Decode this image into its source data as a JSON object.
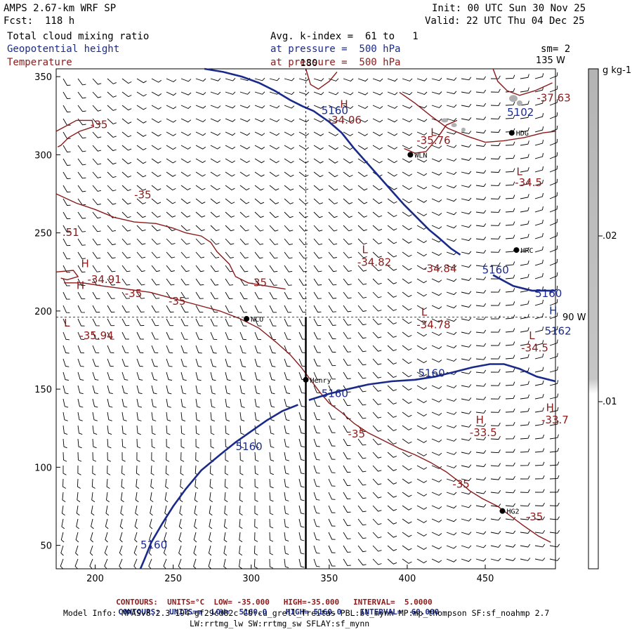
{
  "header": {
    "model": "AMPS 2.67-km WRF SP",
    "fcst": "Fcst:  118 h",
    "init": "Init: 00 UTC Sun 30 Nov 25",
    "valid": "Valid: 22 UTC Thu 04 Dec 25",
    "field1": "Total cloud mixing ratio",
    "field2": "Geopotential height",
    "field3": "Temperature",
    "avg": "Avg. k-index =  61 to   1",
    "pres1": "at pressure =  500 hPa",
    "pres2": "at pressure =  500 hPa",
    "sm": "sm= 2"
  },
  "colors": {
    "temperature": "#8b1a1a",
    "height": "#1a2a8a",
    "cloud": "#b0b0b0",
    "wind": "#000000"
  },
  "chart_data": {
    "type": "contour-map",
    "xlim": [
      175,
      495
    ],
    "ylim": [
      35,
      355
    ],
    "xticks": [
      200,
      250,
      300,
      350,
      400,
      450
    ],
    "yticks": [
      50,
      100,
      150,
      200,
      250,
      300,
      350
    ],
    "map_labels": {
      "lon180": "180",
      "lon135": "135 W",
      "lon90": "90 W"
    },
    "stations": [
      {
        "name": "NCO",
        "x": 297,
        "y": 195
      },
      {
        "name": "Henry",
        "x": 335,
        "y": 156
      },
      {
        "name": "WLN",
        "x": 402,
        "y": 300
      },
      {
        "name": "HRC",
        "x": 470,
        "y": 239
      },
      {
        "name": "HG2",
        "x": 461,
        "y": 72
      },
      {
        "name": "HDG",
        "x": 467,
        "y": 314
      }
    ],
    "temperature_labels": [
      {
        "text": "-35",
        "x": 197,
        "y": 317
      },
      {
        "text": "-35",
        "x": 225,
        "y": 272
      },
      {
        "text": ".51",
        "x": 179,
        "y": 248
      },
      {
        "text": "-35",
        "x": 219,
        "y": 209
      },
      {
        "text": "-35",
        "x": 247,
        "y": 204
      },
      {
        "text": "-35",
        "x": 299,
        "y": 216
      },
      {
        "text": "-35",
        "x": 362,
        "y": 119
      },
      {
        "text": "-35",
        "x": 429,
        "y": 87
      },
      {
        "text": "-35",
        "x": 476,
        "y": 66
      },
      {
        "text": "-34.06",
        "x": 349,
        "y": 320
      },
      {
        "text": "-35.76",
        "x": 406,
        "y": 307
      },
      {
        "text": "-37.63",
        "x": 483,
        "y": 334
      },
      {
        "text": "-34.5",
        "x": 469,
        "y": 280
      },
      {
        "text": "-34.82",
        "x": 368,
        "y": 229
      },
      {
        "text": "-34.84",
        "x": 410,
        "y": 225
      },
      {
        "text": "-34.91",
        "x": 195,
        "y": 218
      },
      {
        "text": "-35.94",
        "x": 190,
        "y": 182
      },
      {
        "text": "-34.78",
        "x": 406,
        "y": 189
      },
      {
        "text": "-34.5",
        "x": 473,
        "y": 174
      },
      {
        "text": "-33.5",
        "x": 440,
        "y": 120
      },
      {
        "text": "-33.7",
        "x": 486,
        "y": 128
      }
    ],
    "height_labels": [
      {
        "text": "5160",
        "x": 345,
        "y": 326
      },
      {
        "text": "5102",
        "x": 464,
        "y": 325
      },
      {
        "text": "5160",
        "x": 448,
        "y": 224
      },
      {
        "text": "5160",
        "x": 482,
        "y": 209
      },
      {
        "text": "5162",
        "x": 488,
        "y": 185
      },
      {
        "text": "5160",
        "x": 407,
        "y": 158
      },
      {
        "text": "5160",
        "x": 345,
        "y": 145
      },
      {
        "text": "5160",
        "x": 290,
        "y": 111
      },
      {
        "text": "5160",
        "x": 229,
        "y": 48
      }
    ],
    "extrema": [
      {
        "text": "H",
        "x": 191,
        "y": 228,
        "color": "red"
      },
      {
        "text": "L",
        "x": 180,
        "y": 190,
        "color": "red"
      },
      {
        "text": "H",
        "x": 188,
        "y": 214,
        "color": "red"
      },
      {
        "text": "H",
        "x": 357,
        "y": 330,
        "color": "red"
      },
      {
        "text": "L",
        "x": 415,
        "y": 312,
        "color": "red"
      },
      {
        "text": "L",
        "x": 470,
        "y": 287,
        "color": "red"
      },
      {
        "text": "L",
        "x": 371,
        "y": 237,
        "color": "red"
      },
      {
        "text": "L",
        "x": 409,
        "y": 197,
        "color": "red"
      },
      {
        "text": "L",
        "x": 478,
        "y": 182,
        "color": "red"
      },
      {
        "text": "H",
        "x": 444,
        "y": 128,
        "color": "red"
      },
      {
        "text": "H",
        "x": 489,
        "y": 136,
        "color": "red"
      },
      {
        "text": "H",
        "x": 491,
        "y": 198,
        "color": "blue"
      }
    ],
    "temperature_contours": [
      [
        [
          175,
          315
        ],
        [
          188,
          322
        ],
        [
          198,
          322
        ],
        [
          199,
          318
        ],
        [
          190,
          315
        ],
        [
          183,
          311
        ],
        [
          178,
          306
        ],
        [
          176,
          305
        ]
      ],
      [
        [
          175,
          275
        ],
        [
          188,
          269
        ],
        [
          200,
          265
        ],
        [
          212,
          260
        ],
        [
          225,
          257
        ],
        [
          239,
          256
        ],
        [
          250,
          253
        ],
        [
          258,
          250
        ],
        [
          268,
          248
        ],
        [
          274,
          244
        ],
        [
          278,
          238
        ],
        [
          286,
          230
        ],
        [
          290,
          222
        ],
        [
          298,
          218
        ],
        [
          310,
          216
        ],
        [
          322,
          214
        ]
      ],
      [
        [
          180,
          218
        ],
        [
          192,
          218
        ],
        [
          205,
          216
        ],
        [
          220,
          214
        ],
        [
          235,
          212
        ],
        [
          250,
          208
        ],
        [
          265,
          204
        ],
        [
          280,
          200
        ],
        [
          293,
          195
        ],
        [
          305,
          189
        ],
        [
          316,
          180
        ],
        [
          325,
          172
        ],
        [
          332,
          164
        ],
        [
          338,
          156
        ],
        [
          344,
          148
        ],
        [
          350,
          141
        ],
        [
          358,
          135
        ],
        [
          366,
          128
        ],
        [
          375,
          122
        ],
        [
          385,
          117
        ],
        [
          395,
          112
        ],
        [
          405,
          108
        ],
        [
          415,
          103
        ],
        [
          425,
          97
        ],
        [
          433,
          91
        ],
        [
          440,
          85
        ],
        [
          448,
          80
        ],
        [
          458,
          75
        ],
        [
          466,
          69
        ],
        [
          474,
          63
        ],
        [
          484,
          56
        ],
        [
          492,
          52
        ]
      ],
      [
        [
          175,
          225
        ],
        [
          186,
          226
        ],
        [
          189,
          222
        ],
        [
          182,
          220
        ],
        [
          178,
          221
        ]
      ],
      [
        [
          335,
          355
        ],
        [
          338,
          345
        ],
        [
          343,
          342
        ],
        [
          350,
          347
        ],
        [
          355,
          353
        ]
      ],
      [
        [
          395,
          340
        ],
        [
          405,
          333
        ],
        [
          415,
          325
        ],
        [
          426,
          317
        ],
        [
          438,
          312
        ],
        [
          450,
          308
        ],
        [
          462,
          309
        ],
        [
          475,
          311
        ],
        [
          487,
          314
        ],
        [
          495,
          315
        ]
      ],
      [
        [
          398,
          304
        ],
        [
          405,
          301
        ],
        [
          412,
          302
        ],
        [
          418,
          309
        ],
        [
          425,
          319
        ],
        [
          432,
          322
        ]
      ],
      [
        [
          455,
          355
        ],
        [
          458,
          347
        ],
        [
          464,
          341
        ],
        [
          472,
          338
        ],
        [
          482,
          341
        ],
        [
          493,
          346
        ]
      ]
    ],
    "height_contours": [
      [
        [
          270,
          355
        ],
        [
          282,
          353
        ],
        [
          294,
          350
        ],
        [
          305,
          346
        ],
        [
          315,
          341
        ],
        [
          325,
          335
        ],
        [
          333,
          331
        ],
        [
          340,
          328
        ],
        [
          350,
          321
        ],
        [
          358,
          314
        ],
        [
          366,
          304
        ],
        [
          374,
          295
        ],
        [
          382,
          286
        ],
        [
          390,
          277
        ],
        [
          398,
          268
        ],
        [
          406,
          260
        ],
        [
          414,
          252
        ],
        [
          420,
          247
        ],
        [
          428,
          240
        ],
        [
          434,
          236
        ]
      ],
      [
        [
          455,
          223
        ],
        [
          468,
          216
        ],
        [
          480,
          213
        ],
        [
          495,
          213
        ]
      ],
      [
        [
          330,
          140
        ],
        [
          320,
          136
        ],
        [
          310,
          130
        ],
        [
          300,
          123
        ],
        [
          290,
          116
        ],
        [
          280,
          108
        ],
        [
          268,
          98
        ],
        [
          258,
          86
        ],
        [
          250,
          75
        ],
        [
          243,
          64
        ],
        [
          236,
          52
        ],
        [
          232,
          42
        ],
        [
          229,
          35
        ]
      ],
      [
        [
          337,
          143
        ],
        [
          350,
          147
        ],
        [
          362,
          150
        ],
        [
          375,
          153
        ],
        [
          390,
          155
        ],
        [
          405,
          156
        ],
        [
          418,
          158
        ],
        [
          430,
          161
        ],
        [
          442,
          164
        ],
        [
          453,
          166
        ],
        [
          462,
          166
        ],
        [
          472,
          163
        ],
        [
          483,
          158
        ],
        [
          495,
          155
        ]
      ]
    ],
    "colorbar": {
      "unit": "g kg-1",
      "ticks": [
        ".02",
        ".01"
      ]
    },
    "footer": {
      "line1_label": "CONTOURS:  UNITS=°C  LOW=",
      "line1_low": "-35.000",
      "line1_high_label": "HIGH=",
      "line1_high": "-35.000",
      "line1_int_label": "INTERVAL=",
      "line1_int": "5.0000",
      "line2_label": "CONTOURS:  UNITS=m  LOW=",
      "line2_low": "5160.0",
      "line2_high_label": "HIGH=",
      "line2_high": "5160.0",
      "line2_int_label": "INTERVAL=",
      "line2_int": "60.000"
    },
    "model_info": "Model Info: MPASv8.2.3-194-gf29cd82c CU:cu_grell_freitas PBL:bl_mynn MP:mp_thompson SF:sf_noahmp 2.7",
    "model_info2": "LW:rrtmg_lw SW:rrtmg_sw SFLAY:sf_mynn"
  }
}
